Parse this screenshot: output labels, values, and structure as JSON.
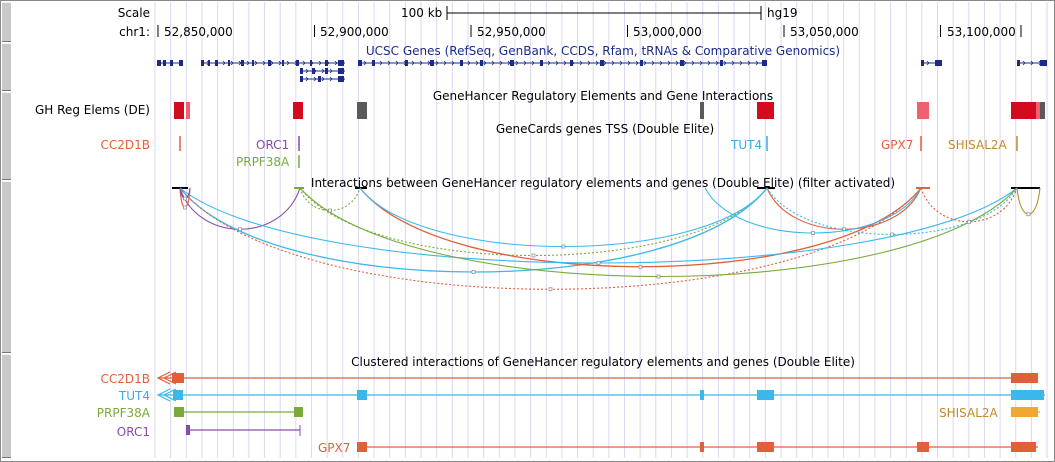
{
  "ruler": {
    "scale_label": "Scale",
    "chrom_label": "chr1:",
    "scale_bar_text": "100 kb",
    "assembly": "hg19",
    "ticks": [
      "52,850,000",
      "52,900,000",
      "52,950,000",
      "53,000,000",
      "53,050,000",
      "53,100,000"
    ]
  },
  "tracks": {
    "ucsc_genes_title": "UCSC Genes (RefSeq, GenBank, CCDS, Rfam, tRNAs & Comparative Genomics)",
    "gh_reg_label": "GH Reg Elems (DE)",
    "gh_reg_title": "GeneHancer Regulatory Elements and Gene Interactions",
    "tss_title": "GeneCards genes TSS (Double Elite)",
    "interactions_title": "Interactions between GeneHancer regulatory elements and genes (Double Elite) (filter activated)",
    "clustered_title": "Clustered interactions of GeneHancer regulatory elements and genes (Double Elite)"
  },
  "tss_genes": [
    {
      "name": "CC2D1B",
      "color": "#e0603a"
    },
    {
      "name": "ORC1",
      "color": "#8a4aa8"
    },
    {
      "name": "PRPF38A",
      "color": "#7aaa3a"
    },
    {
      "name": "TUT4",
      "color": "#3aace0"
    },
    {
      "name": "GPX7",
      "color": "#e0603a"
    },
    {
      "name": "SHISAL2A",
      "color": "#c08a2a"
    }
  ],
  "clustered_rows": [
    {
      "label": "CC2D1B",
      "color": "#e0603a"
    },
    {
      "label": "TUT4",
      "color": "#3ab8ec"
    },
    {
      "label": "PRPF38A",
      "color": "#7aaa3a"
    },
    {
      "label": "ORC1",
      "color": "#8a4aa8"
    }
  ],
  "clustered_inline": [
    {
      "label": "SHISAL2A",
      "color": "#c08a2a"
    },
    {
      "label": "GPX7",
      "color": "#e0603a"
    }
  ],
  "colors": {
    "grid": "#d8d8f0",
    "gene_blue": "#1a2b8a",
    "reg_red": "#d40a1e",
    "reg_pink": "#f06070",
    "reg_gray": "#5a5a5a"
  }
}
